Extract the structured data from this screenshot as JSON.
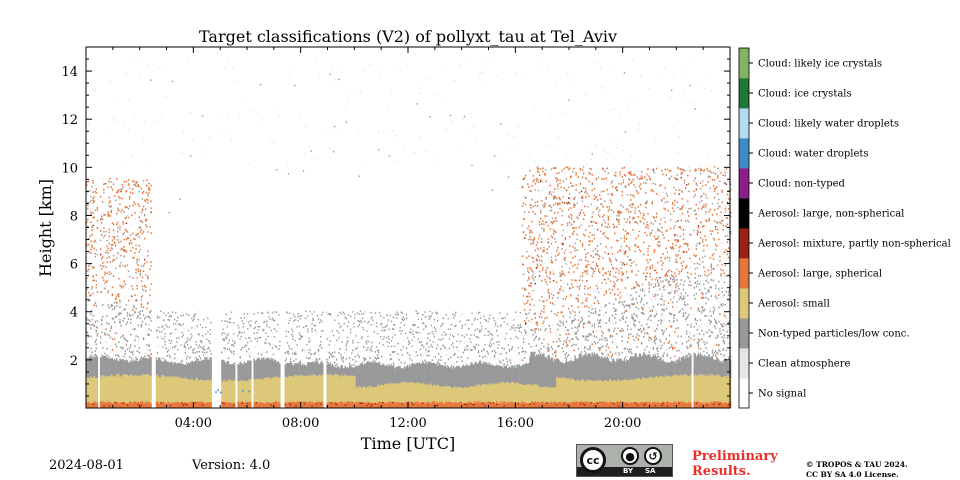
{
  "chart_data": {
    "type": "heatmap",
    "title": "Target classifications (V2) of pollyxt_tau at Tel_Aviv",
    "xlabel": "Time [UTC]",
    "ylabel": "Height [km]",
    "xlim": [
      0,
      24
    ],
    "ylim": [
      0,
      15
    ],
    "xticks": [
      {
        "value": 4,
        "label": "04:00"
      },
      {
        "value": 8,
        "label": "08:00"
      },
      {
        "value": 12,
        "label": "12:00"
      },
      {
        "value": 16,
        "label": "16:00"
      },
      {
        "value": 20,
        "label": "20:00"
      }
    ],
    "yticks": [
      {
        "value": 2,
        "label": "2"
      },
      {
        "value": 4,
        "label": "4"
      },
      {
        "value": 6,
        "label": "6"
      },
      {
        "value": 8,
        "label": "8"
      },
      {
        "value": 10,
        "label": "10"
      },
      {
        "value": 12,
        "label": "12"
      },
      {
        "value": 14,
        "label": "14"
      }
    ],
    "classes": [
      {
        "id": 0,
        "name": "No signal",
        "color": "#ffffff"
      },
      {
        "id": 1,
        "name": "Clean atmosphere",
        "color": "#e6e6e6"
      },
      {
        "id": 2,
        "name": "Non-typed particles/low conc.",
        "color": "#999999"
      },
      {
        "id": 3,
        "name": "Aerosol: small",
        "color": "#dcc878"
      },
      {
        "id": 4,
        "name": "Aerosol: large, spherical",
        "color": "#e6783c"
      },
      {
        "id": 5,
        "name": "Aerosol: mixture, partly non-spherical",
        "color": "#962314"
      },
      {
        "id": 6,
        "name": "Aerosol: large, non-spherical",
        "color": "#000000"
      },
      {
        "id": 7,
        "name": "Cloud: non-typed",
        "color": "#8c1e8c"
      },
      {
        "id": 8,
        "name": "Cloud: water droplets",
        "color": "#3c8cc8"
      },
      {
        "id": 9,
        "name": "Cloud: likely water droplets",
        "color": "#b4dcf0"
      },
      {
        "id": 10,
        "name": "Cloud: ice crystals",
        "color": "#1e7837"
      },
      {
        "id": 11,
        "name": "Cloud: likely ice crystals",
        "color": "#82b464"
      }
    ],
    "layers_km": [
      {
        "class": "Aerosol: large, spherical",
        "bottom": 0.0,
        "top": 0.25
      },
      {
        "class": "Aerosol: small",
        "bottom": 0.25,
        "top": 1.3
      },
      {
        "class": "Non-typed particles/low conc.",
        "top_range": [
          1.3,
          2.0
        ]
      },
      {
        "class": "Aerosol: large, spherical",
        "note": "sparse",
        "top_range": [
          4.0,
          9.0
        ]
      }
    ],
    "data_gaps_utc": [
      [
        0.45,
        0.5
      ],
      [
        2.45,
        2.62
      ],
      [
        4.7,
        5.05
      ],
      [
        5.55,
        5.65
      ],
      [
        6.15,
        6.25
      ],
      [
        7.25,
        7.42
      ],
      [
        8.85,
        8.95
      ],
      [
        22.55,
        22.65
      ]
    ],
    "colorbar_position": "right"
  },
  "footer": {
    "date": "2024-08-01",
    "version": "Version: 4.0",
    "preliminary_line1": "Preliminary",
    "preliminary_line2": "Results.",
    "copyright_line1": "© TROPOS & TAU 2024.",
    "copyright_line2": "CC BY SA 4.0 License.",
    "cc_logo": "cc",
    "cc_by": "BY",
    "cc_sa": "SA"
  }
}
